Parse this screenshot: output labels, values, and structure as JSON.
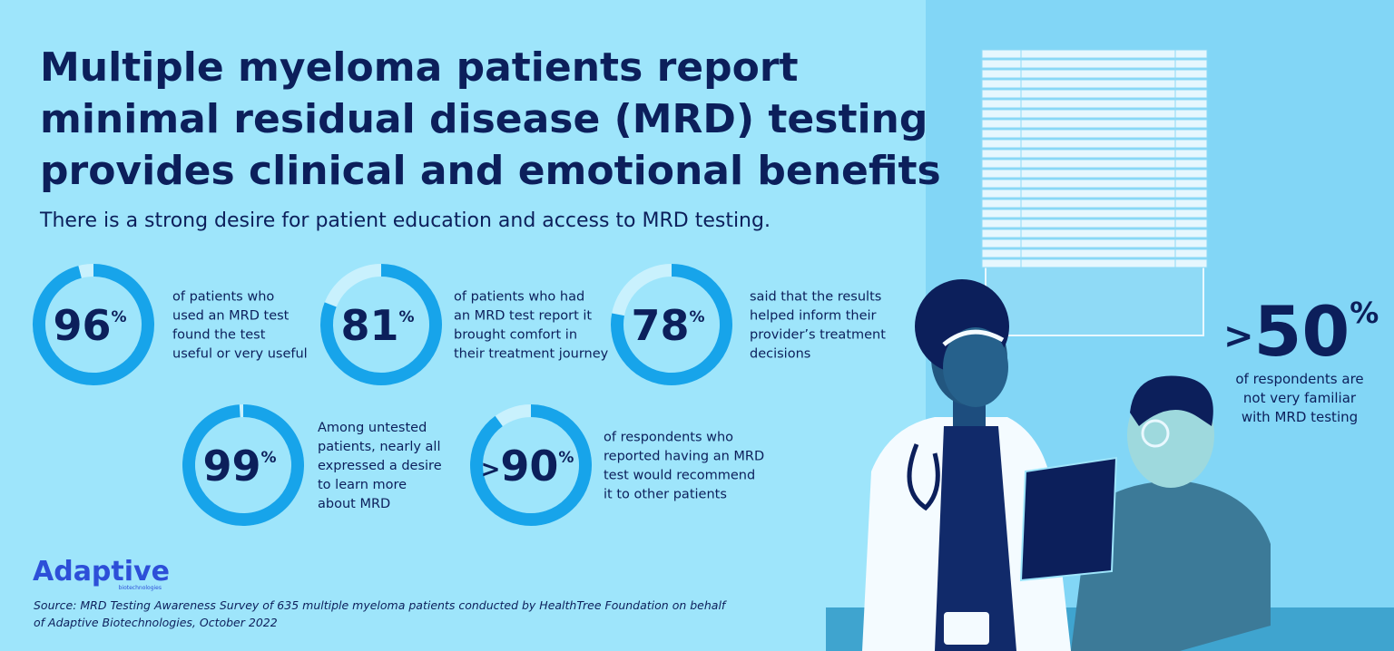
{
  "header": {
    "title": [
      "Multiple myeloma patients report",
      "minimal residual disease (MRD) testing",
      "provides clinical and emotional benefits"
    ],
    "subtitle": "There is a strong desire for patient education and access to MRD testing."
  },
  "stats": [
    {
      "value": 96,
      "unit": "%",
      "lines": [
        "of patients who",
        "used an MRD test",
        "found the test",
        "useful or very useful"
      ]
    },
    {
      "value": 81,
      "unit": "%",
      "lines": [
        "of patients who had",
        "an MRD test report it",
        "brought comfort in",
        "their treatment journey"
      ]
    },
    {
      "value": 78,
      "unit": "%",
      "lines": [
        "said that the results",
        "helped inform their",
        "provider’s treatment",
        "decisions"
      ]
    },
    {
      "value": 99,
      "unit": "%",
      "lines": [
        "Among untested",
        "patients, nearly all",
        "expressed a desire",
        "to learn more",
        "about MRD"
      ]
    },
    {
      "prefix": ">",
      "value": 90,
      "unit": "%",
      "lines": [
        "of respondents who",
        "reported having an MRD",
        "test would recommend",
        "it to other patients"
      ]
    }
  ],
  "callout": {
    "prefix": ">",
    "value": 50,
    "unit": "%",
    "lines": [
      "of respondents are",
      "not very familiar",
      "with MRD testing"
    ]
  },
  "logo": {
    "name": "Adaptive",
    "tagline": "biotechnologies"
  },
  "source": [
    "Source: MRD Testing Awareness Survey of 635 multiple myeloma patients conducted by HealthTree Foundation on behalf",
    "of Adaptive Biotechnologies, October 2022"
  ]
}
